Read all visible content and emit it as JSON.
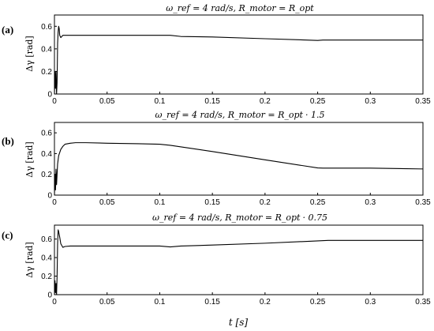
{
  "chart_data": [
    {
      "type": "line",
      "panel_label": "(a)",
      "title": "ω_ref = 4 rad/s, R_motor = R_opt",
      "title_suffix": "",
      "ylabel": "Δγ [rad]",
      "xlabel": "",
      "xlim": [
        0,
        0.35
      ],
      "ylim": [
        0,
        0.7
      ],
      "xticks": [
        0,
        0.05,
        0.1,
        0.15,
        0.2,
        0.25,
        0.3,
        0.35
      ],
      "yticks": [
        0,
        0.2,
        0.4,
        0.6
      ],
      "series": [
        {
          "x": [
            0,
            0.0005,
            0.001,
            0.0015,
            0.002,
            0.0025,
            0.003,
            0.0035,
            0.004,
            0.0045,
            0.005,
            0.006,
            0.007,
            0.008,
            0.01,
            0.015,
            0.02,
            0.05,
            0.08,
            0.1,
            0.11,
            0.12,
            0.15,
            0.2,
            0.25,
            0.255,
            0.3,
            0.35
          ],
          "y": [
            0,
            0.2,
            0.05,
            0.2,
            0,
            0.1,
            0.45,
            0.55,
            0.6,
            0.58,
            0.52,
            0.5,
            0.51,
            0.52,
            0.52,
            0.52,
            0.52,
            0.52,
            0.52,
            0.52,
            0.52,
            0.51,
            0.505,
            0.49,
            0.475,
            0.478,
            0.478,
            0.478
          ]
        }
      ]
    },
    {
      "type": "line",
      "panel_label": "(b)",
      "title": "ω_ref = 4 rad/s, R_motor = R_opt",
      "title_suffix": "· 1.5",
      "ylabel": "Δγ [rad]",
      "xlabel": "",
      "xlim": [
        0,
        0.35
      ],
      "ylim": [
        0,
        0.7
      ],
      "xticks": [
        0,
        0.05,
        0.1,
        0.15,
        0.2,
        0.25,
        0.3,
        0.35
      ],
      "yticks": [
        0,
        0.2,
        0.4,
        0.6
      ],
      "series": [
        {
          "x": [
            0,
            0.0005,
            0.001,
            0.0015,
            0.002,
            0.003,
            0.004,
            0.006,
            0.008,
            0.01,
            0.015,
            0.02,
            0.03,
            0.05,
            0.08,
            0.1,
            0.11,
            0.15,
            0.2,
            0.25,
            0.255,
            0.3,
            0.35
          ],
          "y": [
            0,
            0.2,
            0.05,
            0.25,
            0.1,
            0.3,
            0.38,
            0.44,
            0.47,
            0.49,
            0.5,
            0.505,
            0.505,
            0.5,
            0.495,
            0.49,
            0.48,
            0.42,
            0.34,
            0.262,
            0.26,
            0.26,
            0.252
          ]
        }
      ]
    },
    {
      "type": "line",
      "panel_label": "(c)",
      "title": "ω_ref = 4 rad/s, R_motor = R_opt",
      "title_suffix": "· 0.75",
      "ylabel": "Δγ [rad]",
      "xlabel": "t [s]",
      "xlim": [
        0,
        0.35
      ],
      "ylim": [
        0,
        0.75
      ],
      "xticks": [
        0,
        0.05,
        0.1,
        0.15,
        0.2,
        0.25,
        0.3,
        0.35
      ],
      "yticks": [
        0,
        0.2,
        0.4,
        0.6
      ],
      "series": [
        {
          "x": [
            0,
            0.0005,
            0.001,
            0.0015,
            0.002,
            0.0025,
            0.003,
            0.0035,
            0.004,
            0.005,
            0.006,
            0.008,
            0.01,
            0.015,
            0.02,
            0.05,
            0.1,
            0.11,
            0.12,
            0.15,
            0.2,
            0.25,
            0.26,
            0.3,
            0.35
          ],
          "y": [
            0,
            0.15,
            0.02,
            0.12,
            0,
            0.2,
            0.55,
            0.7,
            0.68,
            0.62,
            0.55,
            0.51,
            0.52,
            0.525,
            0.525,
            0.525,
            0.525,
            0.515,
            0.525,
            0.535,
            0.555,
            0.58,
            0.585,
            0.585,
            0.585
          ]
        }
      ]
    }
  ]
}
